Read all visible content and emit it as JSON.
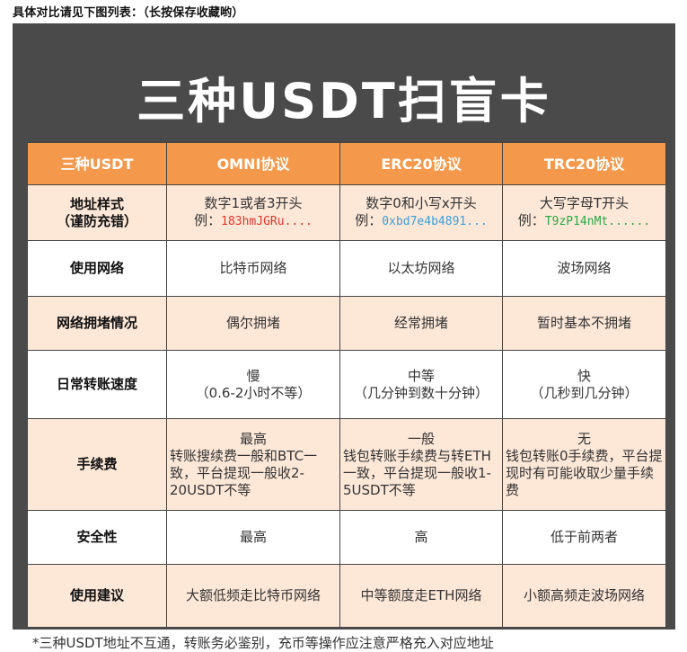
{
  "intro": "具体对比请见下图列表：（长按保存收藏哟）",
  "title": "三种USDT扫盲卡",
  "headers": [
    "三种USDT",
    "OMNI协议",
    "ERC20协议",
    "TRC20协议"
  ],
  "rows": {
    "address": {
      "label_line1": "地址样式",
      "label_line2": "（谨防充错）",
      "omni_line1": "数字1或者3开头",
      "omni_prefix": "例：",
      "omni_example": "183hmJGRu....",
      "erc_line1": "数字0和小写x开头",
      "erc_prefix": "例：",
      "erc_example": "0xbd7e4b4891...",
      "trc_line1": "大写字母T开头",
      "trc_prefix": "例：",
      "trc_example": "T9zP14nMt......"
    },
    "network": {
      "label": "使用网络",
      "omni": "比特币网络",
      "erc": "以太坊网络",
      "trc": "波场网络"
    },
    "congestion": {
      "label": "网络拥堵情况",
      "omni": "偶尔拥堵",
      "erc": "经常拥堵",
      "trc": "暂时基本不拥堵"
    },
    "speed": {
      "label": "日常转账速度",
      "omni_line1": "慢",
      "omni_line2": "（0.6-2小时不等）",
      "erc_line1": "中等",
      "erc_line2": "（几分钟到数十分钟）",
      "trc_line1": "快",
      "trc_line2": "（几秒到几分钟）"
    },
    "fee": {
      "label": "手续费",
      "omni_line1": "最高",
      "omni_rest": "转账搜续费一般和BTC一致，平台提现一般收2-20USDT不等",
      "erc_line1": "一般",
      "erc_rest": "钱包转账手续费与转ETH一致，平台提现一般收1-5USDT不等",
      "trc_line1": "无",
      "trc_rest": "钱包转账0手续费，平台提现时有可能收取少量手续费"
    },
    "security": {
      "label": "安全性",
      "omni": "最高",
      "erc": "高",
      "trc": "低于前两者"
    },
    "advice": {
      "label": "使用建议",
      "omni": "大额低频走比特币网络",
      "erc": "中等额度走ETH网络",
      "trc": "小额高频走波场网络"
    }
  },
  "footnote": "*三种USDT地址不互通，转账务必鉴别，充币等操作应注意严格充入对应地址",
  "colors": {
    "header_orange": "#f4994c",
    "row_peach": "#fde8d8",
    "card_bg": "#4a4a4a",
    "omni_example": "#e0352b",
    "erc_example": "#3a9edb",
    "trc_example": "#28a745"
  }
}
